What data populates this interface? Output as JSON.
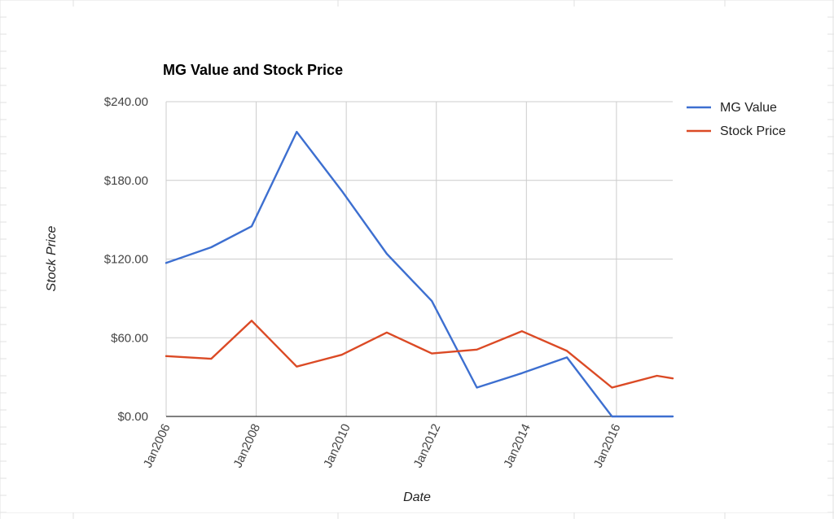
{
  "chart_data": {
    "type": "line",
    "title": "MG Value and Stock Price",
    "xlabel": "Date",
    "ylabel": "Stock Price",
    "ylim": [
      0,
      240
    ],
    "xlim": [
      "Jan2006",
      "Apr2017"
    ],
    "y_ticks": [
      {
        "value": 0,
        "label": "$0.00"
      },
      {
        "value": 60,
        "label": "$60.00"
      },
      {
        "value": 120,
        "label": "$120.00"
      },
      {
        "value": 180,
        "label": "$180.00"
      },
      {
        "value": 240,
        "label": "$240.00"
      }
    ],
    "x_ticks": [
      {
        "value": 2006,
        "label": "Jan2006"
      },
      {
        "value": 2008,
        "label": "Jan2008"
      },
      {
        "value": 2010,
        "label": "Jan2010"
      },
      {
        "value": 2012,
        "label": "Jan2012"
      },
      {
        "value": 2014,
        "label": "Jan2014"
      },
      {
        "value": 2016,
        "label": "Jan2016"
      }
    ],
    "x_gridlines": [
      2006,
      2008,
      2010,
      2012,
      2014,
      2016
    ],
    "grid": true,
    "legend_position": "right",
    "series": [
      {
        "name": "MG Value",
        "color": "#3d6fd0",
        "points": [
          {
            "x": 2006.0,
            "y": 117
          },
          {
            "x": 2007.0,
            "y": 129
          },
          {
            "x": 2007.9,
            "y": 145
          },
          {
            "x": 2008.9,
            "y": 217
          },
          {
            "x": 2009.9,
            "y": 172
          },
          {
            "x": 2010.9,
            "y": 124
          },
          {
            "x": 2011.9,
            "y": 88
          },
          {
            "x": 2012.9,
            "y": 22
          },
          {
            "x": 2013.9,
            "y": 33
          },
          {
            "x": 2014.9,
            "y": 45
          },
          {
            "x": 2015.9,
            "y": 0
          },
          {
            "x": 2016.9,
            "y": 0
          },
          {
            "x": 2017.25,
            "y": 0
          }
        ]
      },
      {
        "name": "Stock Price",
        "color": "#db4a25",
        "points": [
          {
            "x": 2006.0,
            "y": 46
          },
          {
            "x": 2007.0,
            "y": 44
          },
          {
            "x": 2007.9,
            "y": 73
          },
          {
            "x": 2008.9,
            "y": 38
          },
          {
            "x": 2009.9,
            "y": 47
          },
          {
            "x": 2010.9,
            "y": 64
          },
          {
            "x": 2011.9,
            "y": 48
          },
          {
            "x": 2012.9,
            "y": 51
          },
          {
            "x": 2013.9,
            "y": 65
          },
          {
            "x": 2014.9,
            "y": 50
          },
          {
            "x": 2015.9,
            "y": 22
          },
          {
            "x": 2016.9,
            "y": 31
          },
          {
            "x": 2017.25,
            "y": 29
          }
        ]
      }
    ]
  },
  "colors": {
    "grid": "#cccccc",
    "axis": "#333333",
    "title": "#000000",
    "tick_label": "#444444",
    "sheet_grid": "#e2e2e2"
  }
}
